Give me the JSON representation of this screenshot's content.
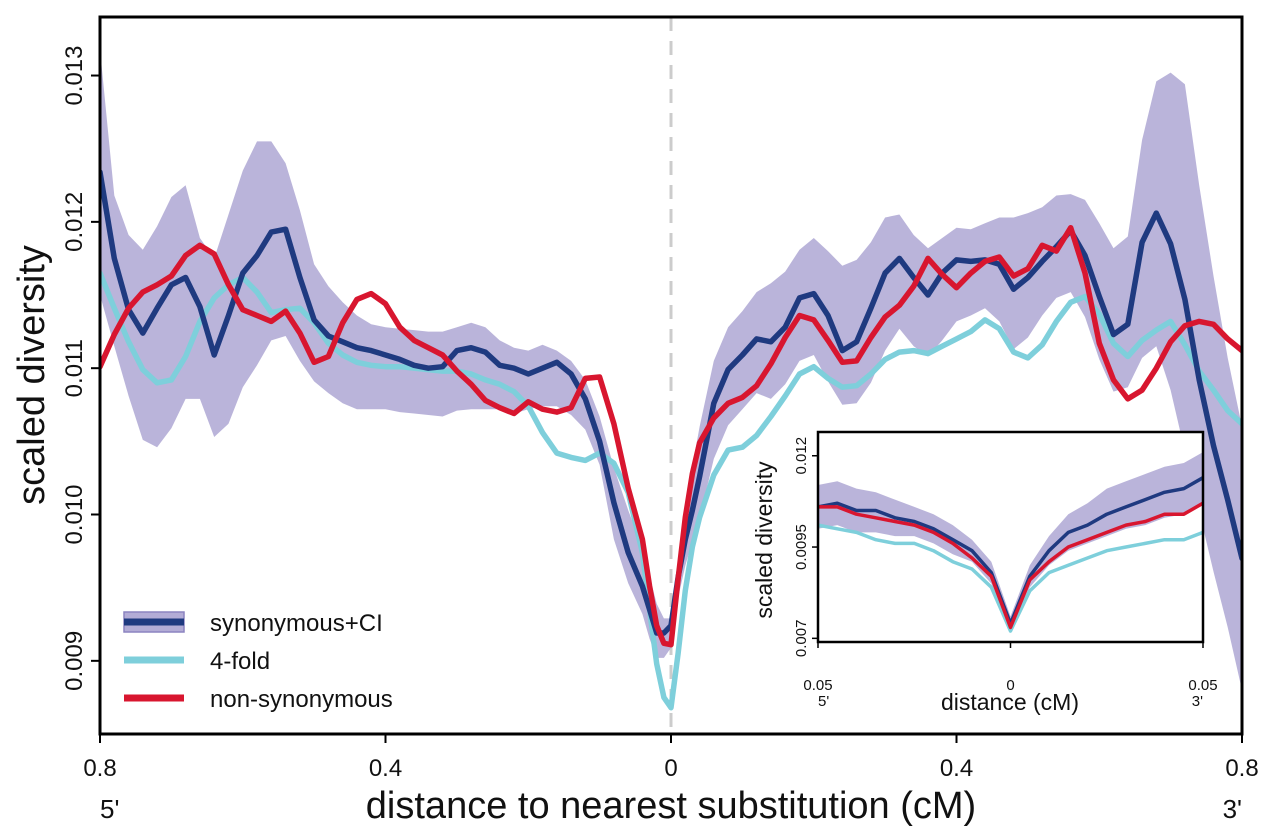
{
  "chart_data": {
    "type": "line",
    "xlabel": "distance to nearest substitution (cM)",
    "ylabel": "scaled diversity",
    "xlim": [
      -0.8,
      0.8
    ],
    "ylim": [
      0.0085,
      0.0134
    ],
    "x_ticks": [
      {
        "value": -0.8,
        "label": "0.8"
      },
      {
        "value": -0.4,
        "label": "0.4"
      },
      {
        "value": 0,
        "label": "0"
      },
      {
        "value": 0.4,
        "label": "0.4"
      },
      {
        "value": 0.8,
        "label": "0.8"
      }
    ],
    "y_ticks": [
      {
        "value": 0.009,
        "label": "0.009"
      },
      {
        "value": 0.01,
        "label": "0.010"
      },
      {
        "value": 0.011,
        "label": "0.011"
      },
      {
        "value": 0.012,
        "label": "0.012"
      },
      {
        "value": 0.013,
        "label": "0.013"
      }
    ],
    "end_labels": {
      "left": "5'",
      "right": "3'"
    },
    "center_line": {
      "x": 0,
      "style": "dashed",
      "color": "#cccccc"
    },
    "legend_position": "bottom-left",
    "x": [
      -0.8,
      -0.78,
      -0.76,
      -0.74,
      -0.72,
      -0.7,
      -0.68,
      -0.66,
      -0.64,
      -0.62,
      -0.6,
      -0.58,
      -0.56,
      -0.54,
      -0.52,
      -0.5,
      -0.48,
      -0.46,
      -0.44,
      -0.42,
      -0.4,
      -0.38,
      -0.36,
      -0.34,
      -0.32,
      -0.3,
      -0.28,
      -0.26,
      -0.24,
      -0.22,
      -0.2,
      -0.18,
      -0.16,
      -0.14,
      -0.12,
      -0.1,
      -0.08,
      -0.06,
      -0.04,
      -0.03,
      -0.02,
      -0.01,
      0,
      0.01,
      0.02,
      0.03,
      0.04,
      0.06,
      0.08,
      0.1,
      0.12,
      0.14,
      0.16,
      0.18,
      0.2,
      0.22,
      0.24,
      0.26,
      0.28,
      0.3,
      0.32,
      0.34,
      0.36,
      0.38,
      0.4,
      0.42,
      0.44,
      0.46,
      0.48,
      0.5,
      0.52,
      0.54,
      0.56,
      0.58,
      0.6,
      0.62,
      0.64,
      0.66,
      0.68,
      0.7,
      0.72,
      0.74,
      0.76,
      0.78,
      0.8
    ],
    "series": [
      {
        "name": "synonymous+CI",
        "color": "#1f3a80",
        "ci_color": "#b3acd6",
        "values": [
          0.01234,
          0.01175,
          0.0114,
          0.01124,
          0.01141,
          0.01157,
          0.01162,
          0.01142,
          0.01109,
          0.01136,
          0.01165,
          0.01177,
          0.01193,
          0.01195,
          0.01162,
          0.01133,
          0.01122,
          0.01118,
          0.01114,
          0.01112,
          0.01109,
          0.01106,
          0.01102,
          0.011,
          0.01101,
          0.01112,
          0.01114,
          0.01111,
          0.01102,
          0.011,
          0.01096,
          0.011,
          0.01104,
          0.01096,
          0.01079,
          0.0105,
          0.01008,
          0.00974,
          0.00951,
          0.00935,
          0.00919,
          0.00919,
          0.00924,
          0.00957,
          0.00983,
          0.01003,
          0.01026,
          0.01076,
          0.01099,
          0.01109,
          0.0112,
          0.01118,
          0.01128,
          0.01148,
          0.01151,
          0.01136,
          0.01112,
          0.01118,
          0.01141,
          0.01165,
          0.01175,
          0.01162,
          0.0115,
          0.01165,
          0.01174,
          0.01173,
          0.01174,
          0.01171,
          0.01154,
          0.01162,
          0.01173,
          0.01183,
          0.01194,
          0.01177,
          0.01149,
          0.01123,
          0.0113,
          0.01186,
          0.01206,
          0.01185,
          0.01147,
          0.01092,
          0.01047,
          0.0101,
          0.0097
        ],
        "ci_upper": [
          0.01318,
          0.01218,
          0.01191,
          0.01181,
          0.01197,
          0.01217,
          0.01225,
          0.01189,
          0.01175,
          0.01205,
          0.01235,
          0.01255,
          0.01255,
          0.0124,
          0.01208,
          0.01171,
          0.01156,
          0.01145,
          0.01136,
          0.0113,
          0.01128,
          0.01127,
          0.01126,
          0.01125,
          0.01125,
          0.01128,
          0.01131,
          0.01128,
          0.01119,
          0.01114,
          0.01112,
          0.01116,
          0.01112,
          0.01105,
          0.01092,
          0.01067,
          0.01032,
          0.01003,
          0.00977,
          0.00958,
          0.00939,
          0.00929,
          0.00929,
          0.00964,
          0.01002,
          0.01033,
          0.0106,
          0.01105,
          0.01128,
          0.01139,
          0.01152,
          0.01158,
          0.01166,
          0.01181,
          0.01189,
          0.0118,
          0.0117,
          0.01174,
          0.01186,
          0.01203,
          0.01205,
          0.01191,
          0.01182,
          0.01189,
          0.01196,
          0.01195,
          0.01199,
          0.01203,
          0.01203,
          0.01206,
          0.0121,
          0.01218,
          0.01219,
          0.01215,
          0.01199,
          0.01182,
          0.0119,
          0.01256,
          0.01296,
          0.01302,
          0.01294,
          0.01225,
          0.01163,
          0.01107,
          0.0106
        ],
        "ci_lower": [
          0.0115,
          0.01115,
          0.01081,
          0.01051,
          0.01046,
          0.01059,
          0.01079,
          0.01079,
          0.01053,
          0.01062,
          0.01087,
          0.01102,
          0.01119,
          0.01122,
          0.01105,
          0.01091,
          0.01083,
          0.01076,
          0.01072,
          0.01072,
          0.01072,
          0.0107,
          0.01069,
          0.01068,
          0.01067,
          0.01071,
          0.01072,
          0.01072,
          0.01072,
          0.01069,
          0.01072,
          0.01074,
          0.01074,
          0.01068,
          0.01058,
          0.01034,
          0.00983,
          0.00953,
          0.00932,
          0.00915,
          0.00902,
          0.00902,
          0.00909,
          0.00943,
          0.00965,
          0.00982,
          0.00997,
          0.01038,
          0.01061,
          0.01072,
          0.01083,
          0.01079,
          0.01089,
          0.01105,
          0.01109,
          0.01091,
          0.01075,
          0.01076,
          0.0109,
          0.01112,
          0.01127,
          0.01115,
          0.01108,
          0.01119,
          0.01132,
          0.01136,
          0.01141,
          0.01132,
          0.01113,
          0.01121,
          0.01136,
          0.01148,
          0.01152,
          0.01135,
          0.01106,
          0.01084,
          0.01087,
          0.01107,
          0.01115,
          0.01085,
          0.01043,
          0.01002,
          0.00961,
          0.00923,
          0.0088
        ]
      },
      {
        "name": "4-fold",
        "color": "#7ecfdb",
        "values": [
          0.01165,
          0.01141,
          0.01118,
          0.01099,
          0.0109,
          0.01092,
          0.01108,
          0.01132,
          0.01148,
          0.01157,
          0.01162,
          0.01152,
          0.01138,
          0.0114,
          0.01141,
          0.01131,
          0.01117,
          0.01109,
          0.01104,
          0.01102,
          0.01101,
          0.01101,
          0.011,
          0.01099,
          0.01098,
          0.01098,
          0.01096,
          0.01092,
          0.01089,
          0.01084,
          0.01074,
          0.01056,
          0.01042,
          0.01039,
          0.01037,
          0.01042,
          0.01035,
          0.01015,
          0.00974,
          0.00935,
          0.00898,
          0.00875,
          0.00868,
          0.00905,
          0.00948,
          0.00978,
          0.00998,
          0.01027,
          0.01044,
          0.01046,
          0.01054,
          0.01067,
          0.01081,
          0.01096,
          0.01101,
          0.01093,
          0.01087,
          0.01088,
          0.01096,
          0.01106,
          0.01111,
          0.01112,
          0.0111,
          0.01115,
          0.0112,
          0.01125,
          0.01133,
          0.01127,
          0.01111,
          0.01107,
          0.01116,
          0.01132,
          0.01145,
          0.01149,
          0.01137,
          0.01117,
          0.01108,
          0.01119,
          0.01126,
          0.01132,
          0.01116,
          0.01098,
          0.01085,
          0.01071,
          0.01062
        ]
      },
      {
        "name": "non-synonymous",
        "color": "#d8162f",
        "values": [
          0.01101,
          0.01123,
          0.01141,
          0.01152,
          0.01157,
          0.01163,
          0.01177,
          0.01184,
          0.01178,
          0.01157,
          0.0114,
          0.01136,
          0.01132,
          0.01139,
          0.01124,
          0.01104,
          0.01108,
          0.01131,
          0.01147,
          0.01151,
          0.01144,
          0.01128,
          0.01119,
          0.01114,
          0.01109,
          0.01098,
          0.01089,
          0.01078,
          0.01073,
          0.01069,
          0.01077,
          0.01072,
          0.0107,
          0.01073,
          0.01093,
          0.01094,
          0.01062,
          0.01018,
          0.00983,
          0.00951,
          0.00924,
          0.00912,
          0.00911,
          0.00956,
          0.00998,
          0.01028,
          0.01049,
          0.01066,
          0.01076,
          0.0108,
          0.01088,
          0.01103,
          0.01121,
          0.01136,
          0.01133,
          0.01119,
          0.01104,
          0.01105,
          0.01121,
          0.01135,
          0.01143,
          0.01156,
          0.01175,
          0.01164,
          0.01155,
          0.01165,
          0.01173,
          0.01176,
          0.01163,
          0.01168,
          0.01184,
          0.0118,
          0.01196,
          0.01165,
          0.01117,
          0.01092,
          0.01079,
          0.01085,
          0.011,
          0.01118,
          0.01129,
          0.01132,
          0.0113,
          0.0112,
          0.01112
        ]
      }
    ],
    "inset": {
      "type": "line",
      "xlabel": "distance (cM)",
      "ylabel": "scaled diversity",
      "xlim": [
        -0.05,
        0.05
      ],
      "ylim": [
        0.0069,
        0.01265
      ],
      "x_ticks": [
        {
          "value": -0.05,
          "label": "0.05"
        },
        {
          "value": 0,
          "label": "0"
        },
        {
          "value": 0.05,
          "label": "0.05"
        }
      ],
      "y_ticks": [
        {
          "value": 0.007,
          "label": "0.007"
        },
        {
          "value": 0.0095,
          "label": "0.0095"
        },
        {
          "value": 0.012,
          "label": "0.012"
        }
      ],
      "end_labels": {
        "left": "5'",
        "right": "3'"
      },
      "x": [
        -0.05,
        -0.045,
        -0.04,
        -0.035,
        -0.03,
        -0.025,
        -0.02,
        -0.015,
        -0.01,
        -0.005,
        0,
        0.005,
        0.01,
        0.015,
        0.02,
        0.025,
        0.03,
        0.035,
        0.04,
        0.045,
        0.05
      ],
      "series": [
        {
          "name": "synonymous+CI",
          "color": "#1f3a80",
          "ci_color": "#b3acd6",
          "values": [
            0.0106,
            0.0107,
            0.0105,
            0.0105,
            0.0103,
            0.0102,
            0.01,
            0.0097,
            0.0094,
            0.0088,
            0.0074,
            0.0087,
            0.0094,
            0.0099,
            0.0101,
            0.0104,
            0.0106,
            0.0108,
            0.011,
            0.0111,
            0.0114
          ],
          "ci_upper": [
            0.0112,
            0.0113,
            0.0111,
            0.011,
            0.0108,
            0.0106,
            0.0104,
            0.0101,
            0.0097,
            0.0091,
            0.0076,
            0.009,
            0.0098,
            0.0104,
            0.0107,
            0.0111,
            0.0113,
            0.0115,
            0.0117,
            0.0118,
            0.0121
          ],
          "ci_lower": [
            0.01,
            0.0101,
            0.0099,
            0.0099,
            0.0098,
            0.0098,
            0.0096,
            0.0093,
            0.0091,
            0.0085,
            0.0072,
            0.0084,
            0.009,
            0.0094,
            0.0096,
            0.0098,
            0.01,
            0.0101,
            0.0103,
            0.0104,
            0.0107
          ]
        },
        {
          "name": "4-fold",
          "color": "#7ecfdb",
          "values": [
            0.0101,
            0.01,
            0.0099,
            0.0097,
            0.0096,
            0.0096,
            0.0094,
            0.0091,
            0.0089,
            0.0084,
            0.0072,
            0.0083,
            0.0088,
            0.009,
            0.0092,
            0.0094,
            0.0095,
            0.0096,
            0.0097,
            0.0097,
            0.0099
          ]
        },
        {
          "name": "non-synonymous",
          "color": "#d8162f",
          "values": [
            0.0106,
            0.0106,
            0.0104,
            0.0103,
            0.0102,
            0.0101,
            0.0099,
            0.0096,
            0.0092,
            0.0087,
            0.0073,
            0.0086,
            0.0091,
            0.0095,
            0.0097,
            0.0099,
            0.0101,
            0.0102,
            0.0104,
            0.0104,
            0.0107
          ]
        }
      ]
    }
  }
}
